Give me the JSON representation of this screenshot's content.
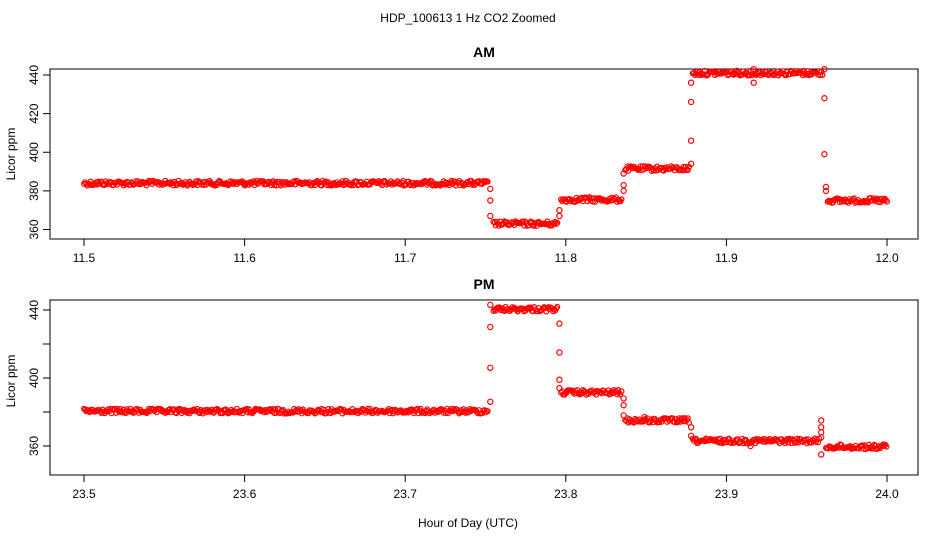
{
  "chart_data": {
    "type": "scatter",
    "title": "HDP_100613  1 Hz CO2 Zoomed",
    "xlabel": "Hour of Day (UTC)",
    "marker_color": "#ff0000",
    "panels": [
      {
        "title": "AM",
        "ylabel": "Licor ppm",
        "xlim": [
          11.5,
          12.0
        ],
        "ylim": [
          358,
          446
        ],
        "xticks": [
          11.5,
          11.6,
          11.7,
          11.8,
          11.9,
          12.0
        ],
        "xtick_labels": [
          "11.5",
          "11.6",
          "11.7",
          "11.8",
          "11.9",
          "12.0"
        ],
        "yticks": [
          360,
          380,
          400,
          420,
          440
        ],
        "ytick_labels": [
          "360",
          "380",
          "400",
          "420",
          "440"
        ],
        "segments": [
          {
            "x0": 11.5,
            "x1": 11.752,
            "y": 384
          },
          {
            "x0": 11.755,
            "x1": 11.795,
            "y": 363
          },
          {
            "x0": 11.797,
            "x1": 11.835,
            "y": 375.5
          },
          {
            "x0": 11.837,
            "x1": 11.877,
            "y": 391.5
          },
          {
            "x0": 11.879,
            "x1": 11.96,
            "y": 441
          },
          {
            "x0": 11.963,
            "x1": 12.0,
            "y": 375
          }
        ],
        "outliers": [
          {
            "x": 11.753,
            "y": 381
          },
          {
            "x": 11.753,
            "y": 375
          },
          {
            "x": 11.753,
            "y": 367
          },
          {
            "x": 11.796,
            "y": 367
          },
          {
            "x": 11.796,
            "y": 370
          },
          {
            "x": 11.836,
            "y": 383
          },
          {
            "x": 11.836,
            "y": 380
          },
          {
            "x": 11.836,
            "y": 389
          },
          {
            "x": 11.878,
            "y": 394
          },
          {
            "x": 11.878,
            "y": 406
          },
          {
            "x": 11.878,
            "y": 426
          },
          {
            "x": 11.878,
            "y": 436
          },
          {
            "x": 11.917,
            "y": 436
          },
          {
            "x": 11.917,
            "y": 443
          },
          {
            "x": 11.961,
            "y": 443
          },
          {
            "x": 11.961,
            "y": 428
          },
          {
            "x": 11.961,
            "y": 399
          },
          {
            "x": 11.962,
            "y": 382
          },
          {
            "x": 11.962,
            "y": 380
          }
        ]
      },
      {
        "title": "PM",
        "ylabel": "Licor ppm",
        "xlim": [
          23.5,
          24.0
        ],
        "ylim": [
          354,
          446
        ],
        "xticks": [
          23.5,
          23.6,
          23.7,
          23.8,
          23.9,
          24.0
        ],
        "xtick_labels": [
          "23.5",
          "23.6",
          "23.7",
          "23.8",
          "23.9",
          "24.0"
        ],
        "yticks": [
          360,
          380,
          400,
          420,
          440
        ],
        "ytick_labels": [
          "360",
          "",
          "400",
          "",
          "440"
        ],
        "segments": [
          {
            "x0": 23.5,
            "x1": 23.752,
            "y": 380.5
          },
          {
            "x0": 23.755,
            "x1": 23.795,
            "y": 440.5
          },
          {
            "x0": 23.797,
            "x1": 23.835,
            "y": 391.5
          },
          {
            "x0": 23.837,
            "x1": 23.877,
            "y": 375
          },
          {
            "x0": 23.879,
            "x1": 23.958,
            "y": 363
          },
          {
            "x0": 23.962,
            "x1": 24.0,
            "y": 359.5
          }
        ],
        "outliers": [
          {
            "x": 23.753,
            "y": 386
          },
          {
            "x": 23.753,
            "y": 406
          },
          {
            "x": 23.753,
            "y": 430
          },
          {
            "x": 23.753,
            "y": 443
          },
          {
            "x": 23.796,
            "y": 432
          },
          {
            "x": 23.796,
            "y": 415
          },
          {
            "x": 23.796,
            "y": 399
          },
          {
            "x": 23.796,
            "y": 394
          },
          {
            "x": 23.836,
            "y": 388
          },
          {
            "x": 23.836,
            "y": 384
          },
          {
            "x": 23.836,
            "y": 378
          },
          {
            "x": 23.849,
            "y": 377
          },
          {
            "x": 23.878,
            "y": 371
          },
          {
            "x": 23.878,
            "y": 366
          },
          {
            "x": 23.915,
            "y": 360
          },
          {
            "x": 23.959,
            "y": 375
          },
          {
            "x": 23.959,
            "y": 371
          },
          {
            "x": 23.959,
            "y": 368
          },
          {
            "x": 23.959,
            "y": 365
          },
          {
            "x": 23.959,
            "y": 355
          }
        ]
      }
    ]
  }
}
